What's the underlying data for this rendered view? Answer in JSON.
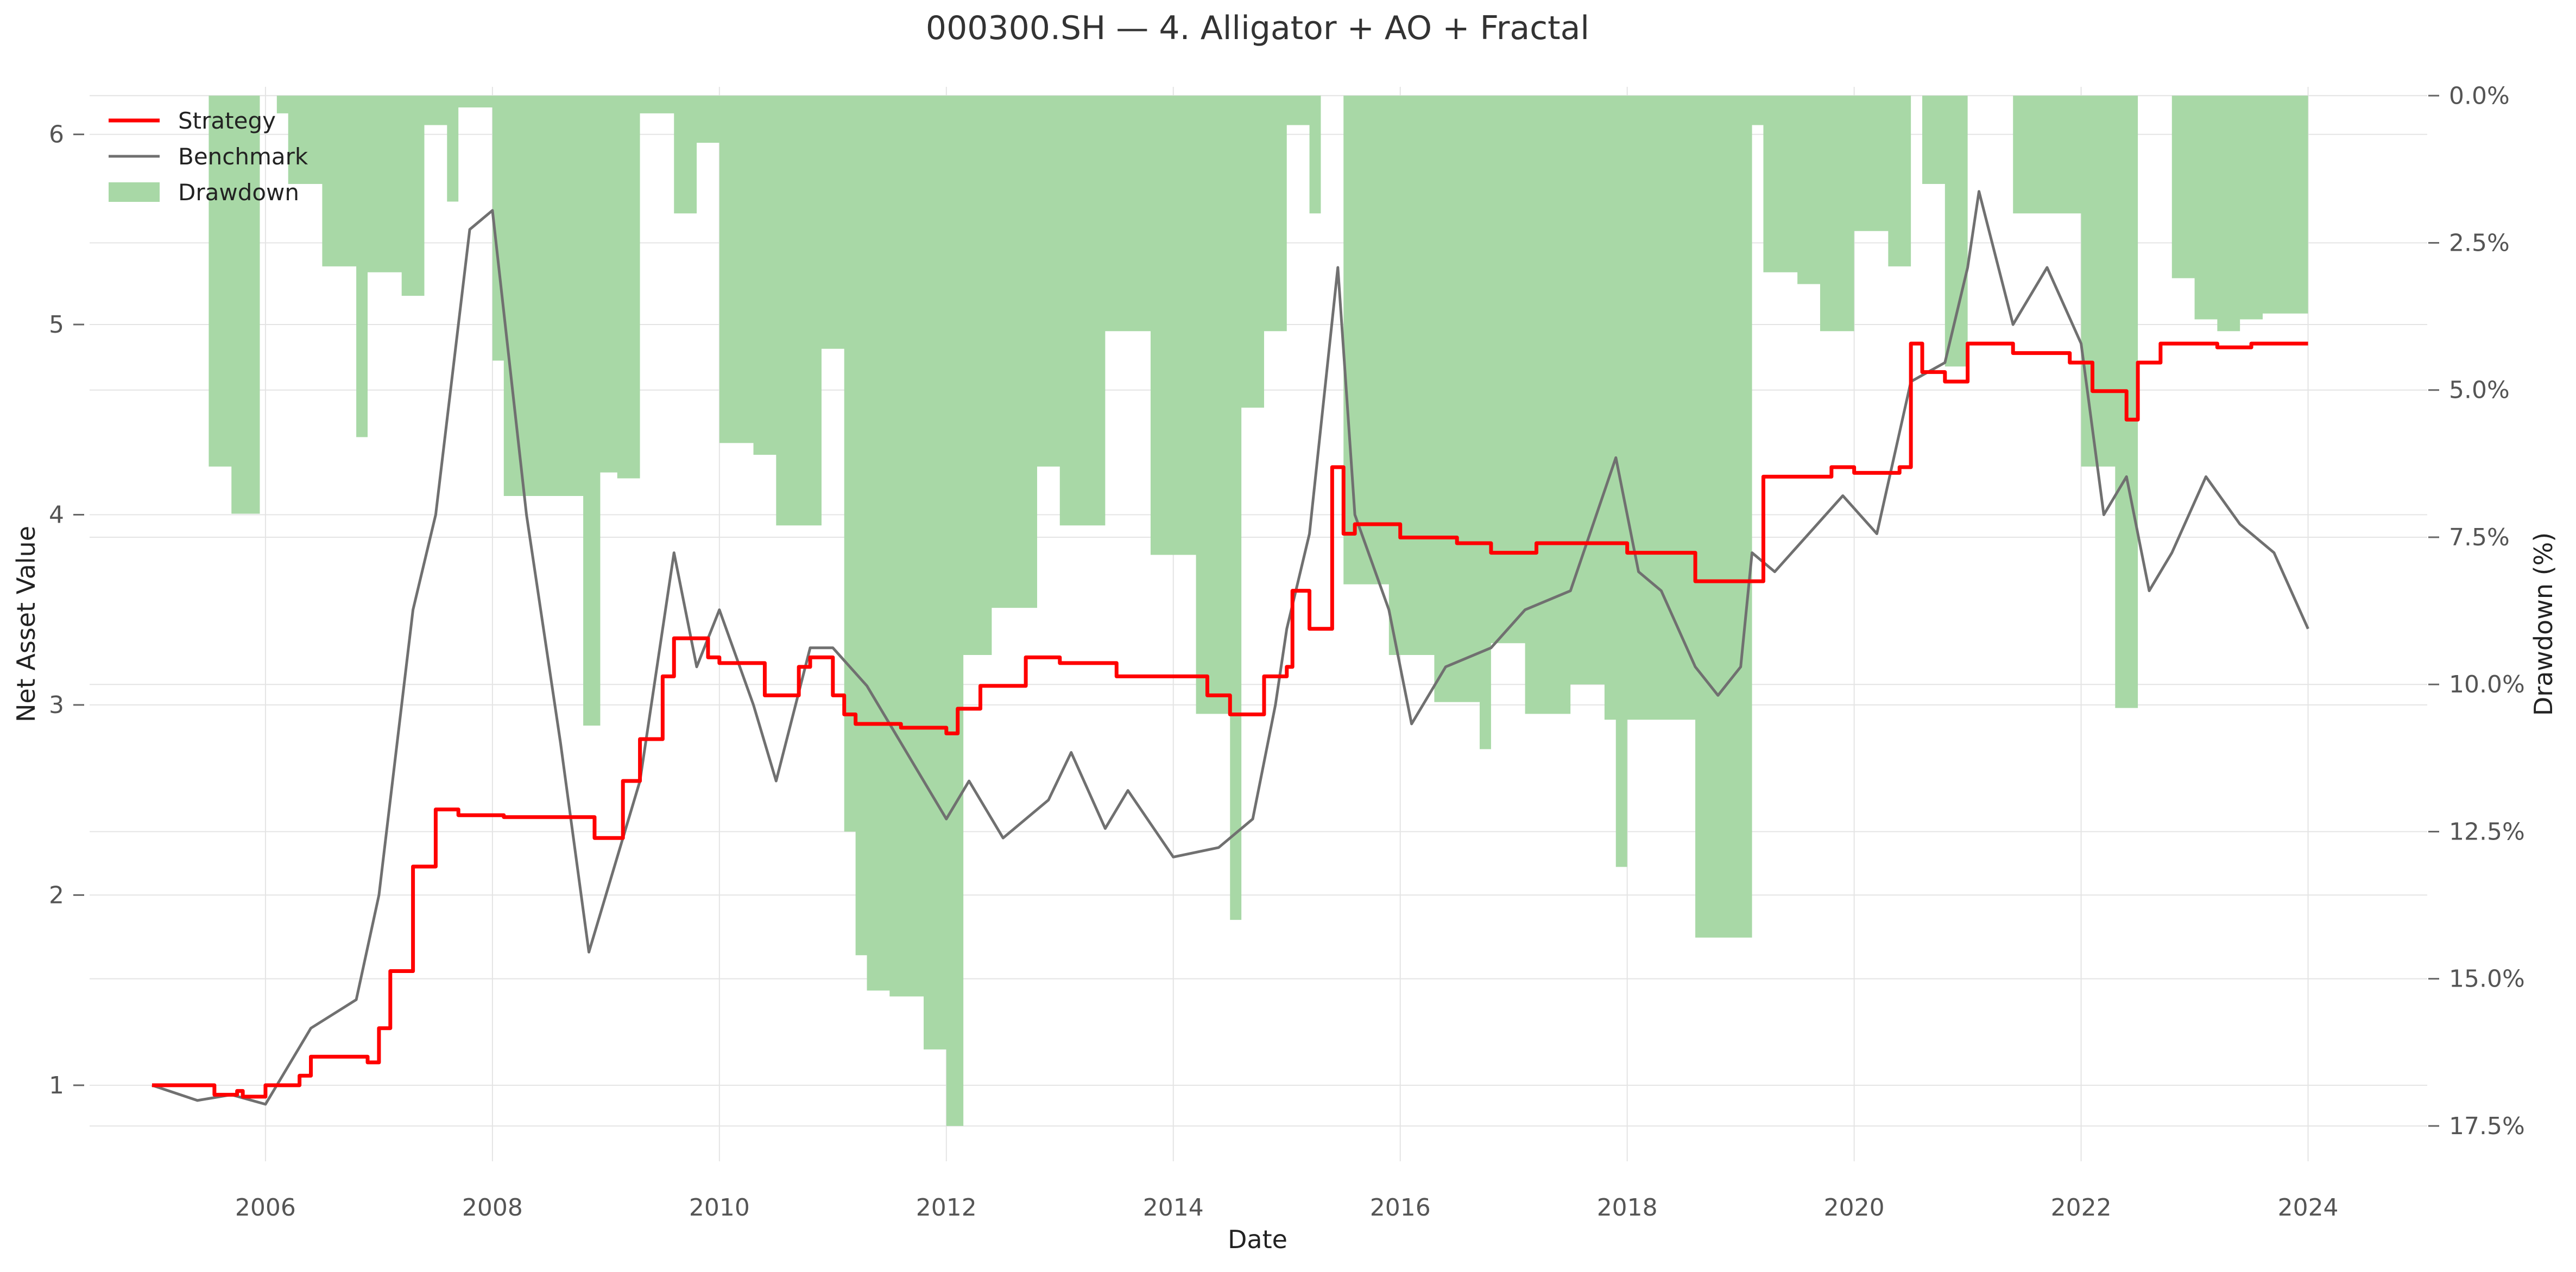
{
  "chart_data": {
    "type": "line",
    "title": "000300.SH — 4. Alligator + AO + Fractal",
    "xlabel": "Date",
    "ylabel": "Net Asset Value",
    "y2label": "Drawdown (%)",
    "xlim": [
      2004.45,
      2025.05
    ],
    "ylim": [
      0.6,
      6.25
    ],
    "y2lim": [
      18.1,
      -0.15
    ],
    "x_ticks": [
      2006,
      2008,
      2010,
      2012,
      2014,
      2016,
      2018,
      2020,
      2022,
      2024
    ],
    "y_ticks": [
      1,
      2,
      3,
      4,
      5,
      6
    ],
    "y2_ticks": [
      0,
      2.5,
      5,
      7.5,
      10,
      12.5,
      15,
      17.5
    ],
    "y2_tick_labels": [
      "0.0%",
      "2.5%",
      "5.0%",
      "7.5%",
      "10.0%",
      "12.5%",
      "15.0%",
      "17.5%"
    ],
    "grid": true,
    "legend_position": "top-left",
    "legend": [
      "Strategy",
      "Benchmark",
      "Drawdown"
    ],
    "colors": {
      "strategy": "#ff0000",
      "benchmark": "#707070",
      "drawdown": "#a8d8a6",
      "grid": "#e4e4e4"
    },
    "series": [
      {
        "name": "Strategy",
        "axis": "left",
        "x": [
          2005.0,
          2005.5,
          2005.55,
          2005.75,
          2005.8,
          2005.95,
          2006.0,
          2006.3,
          2006.4,
          2006.9,
          2007.0,
          2007.1,
          2007.3,
          2007.5,
          2007.7,
          2008.0,
          2008.1,
          2008.3,
          2008.9,
          2009.0,
          2009.15,
          2009.3,
          2009.5,
          2009.6,
          2009.9,
          2010.0,
          2010.4,
          2010.5,
          2010.7,
          2010.8,
          2011.0,
          2011.1,
          2011.2,
          2011.6,
          2012.0,
          2012.1,
          2012.3,
          2012.6,
          2012.7,
          2013.0,
          2013.5,
          2013.6,
          2014.3,
          2014.5,
          2014.8,
          2015.0,
          2015.05,
          2015.2,
          2015.4,
          2015.5,
          2015.6,
          2016.0,
          2016.5,
          2016.8,
          2017.2,
          2017.6,
          2018.0,
          2018.6,
          2019.0,
          2019.2,
          2019.5,
          2019.8,
          2020.0,
          2020.4,
          2020.5,
          2020.6,
          2020.8,
          2021.0,
          2021.4,
          2021.9,
          2022.1,
          2022.4,
          2022.5,
          2022.7,
          2023.0,
          2023.2,
          2023.5,
          2024.0
        ],
        "values": [
          1.0,
          1.0,
          0.95,
          0.97,
          0.94,
          0.94,
          1.0,
          1.05,
          1.15,
          1.12,
          1.3,
          1.6,
          2.15,
          2.45,
          2.42,
          2.42,
          2.41,
          2.41,
          2.3,
          2.3,
          2.6,
          2.82,
          3.15,
          3.35,
          3.25,
          3.22,
          3.05,
          3.05,
          3.2,
          3.25,
          3.05,
          2.95,
          2.9,
          2.88,
          2.85,
          2.98,
          3.1,
          3.1,
          3.25,
          3.22,
          3.15,
          3.15,
          3.05,
          2.95,
          3.15,
          3.2,
          3.6,
          3.4,
          4.25,
          3.9,
          3.95,
          3.88,
          3.85,
          3.8,
          3.85,
          3.85,
          3.8,
          3.65,
          3.65,
          4.2,
          4.2,
          4.25,
          4.22,
          4.25,
          4.9,
          4.75,
          4.7,
          4.9,
          4.85,
          4.8,
          4.65,
          4.5,
          4.8,
          4.9,
          4.9,
          4.88,
          4.9,
          4.9
        ]
      },
      {
        "name": "Benchmark",
        "axis": "left",
        "x": [
          2005.0,
          2005.4,
          2005.7,
          2006.0,
          2006.4,
          2006.8,
          2007.0,
          2007.3,
          2007.5,
          2007.8,
          2008.0,
          2008.3,
          2008.6,
          2008.85,
          2009.0,
          2009.3,
          2009.6,
          2009.8,
          2010.0,
          2010.3,
          2010.5,
          2010.8,
          2011.0,
          2011.3,
          2011.6,
          2012.0,
          2012.2,
          2012.5,
          2012.9,
          2013.1,
          2013.4,
          2013.6,
          2014.0,
          2014.4,
          2014.7,
          2014.9,
          2015.0,
          2015.2,
          2015.45,
          2015.6,
          2015.9,
          2016.1,
          2016.4,
          2016.8,
          2017.1,
          2017.5,
          2017.9,
          2018.1,
          2018.3,
          2018.6,
          2018.8,
          2019.0,
          2019.1,
          2019.3,
          2019.6,
          2019.9,
          2020.2,
          2020.5,
          2020.8,
          2021.0,
          2021.1,
          2021.4,
          2021.7,
          2022.0,
          2022.2,
          2022.4,
          2022.6,
          2022.8,
          2023.1,
          2023.4,
          2023.7,
          2024.0
        ],
        "values": [
          1.0,
          0.92,
          0.95,
          0.9,
          1.3,
          1.45,
          2.0,
          3.5,
          4.0,
          5.5,
          5.6,
          4.0,
          2.8,
          1.7,
          2.0,
          2.6,
          3.8,
          3.2,
          3.5,
          3.0,
          2.6,
          3.3,
          3.3,
          3.1,
          2.8,
          2.4,
          2.6,
          2.3,
          2.5,
          2.75,
          2.35,
          2.55,
          2.2,
          2.25,
          2.4,
          3.0,
          3.4,
          3.9,
          5.3,
          4.0,
          3.5,
          2.9,
          3.2,
          3.3,
          3.5,
          3.6,
          4.3,
          3.7,
          3.6,
          3.2,
          3.05,
          3.2,
          3.8,
          3.7,
          3.9,
          4.1,
          3.9,
          4.7,
          4.8,
          5.3,
          5.7,
          5.0,
          5.3,
          4.9,
          4.0,
          4.2,
          3.6,
          3.8,
          4.2,
          3.95,
          3.8,
          3.4
        ]
      },
      {
        "name": "Drawdown",
        "axis": "right",
        "type": "area",
        "x": [
          2005.45,
          2005.5,
          2005.6,
          2005.7,
          2005.95,
          2006.1,
          2006.2,
          2006.5,
          2006.8,
          2006.9,
          2007.2,
          2007.4,
          2007.6,
          2007.7,
          2008.0,
          2008.1,
          2008.4,
          2008.8,
          2008.95,
          2009.1,
          2009.3,
          2009.6,
          2009.8,
          2010.0,
          2010.3,
          2010.5,
          2010.6,
          2010.9,
          2011.1,
          2011.2,
          2011.3,
          2011.5,
          2011.8,
          2012.0,
          2012.15,
          2012.4,
          2012.8,
          2013.0,
          2013.4,
          2013.8,
          2014.2,
          2014.5,
          2014.6,
          2014.8,
          2015.0,
          2015.2,
          2015.3,
          2015.5,
          2015.6,
          2015.9,
          2016.3,
          2016.7,
          2016.8,
          2017.1,
          2017.5,
          2017.8,
          2017.9,
          2018.0,
          2018.5,
          2018.6,
          2019.1,
          2019.2,
          2019.5,
          2019.7,
          2020.0,
          2020.3,
          2020.5,
          2020.6,
          2020.8,
          2021.0,
          2021.4,
          2021.8,
          2022.0,
          2022.3,
          2022.5,
          2022.8,
          2023.0,
          2023.2,
          2023.4,
          2023.6,
          2024.0
        ],
        "values": [
          0,
          6.3,
          6.3,
          7.1,
          0,
          0.3,
          1.5,
          2.9,
          5.8,
          3.0,
          3.4,
          0.5,
          1.8,
          0.2,
          4.5,
          6.8,
          6.8,
          10.7,
          6.4,
          6.5,
          0.3,
          2.0,
          0.8,
          5.9,
          6.1,
          7.3,
          7.3,
          4.3,
          12.5,
          14.6,
          15.2,
          15.3,
          16.2,
          17.5,
          9.5,
          8.7,
          6.3,
          7.3,
          4.0,
          7.8,
          10.5,
          14.0,
          5.3,
          4.0,
          0.5,
          2.0,
          0,
          8.3,
          8.3,
          9.5,
          10.3,
          11.1,
          9.3,
          10.5,
          10.0,
          10.6,
          13.1,
          10.6,
          10.6,
          14.3,
          0.5,
          3.0,
          3.2,
          4.0,
          2.3,
          2.9,
          0,
          1.5,
          4.6,
          0,
          2.0,
          2.0,
          6.3,
          10.4,
          0,
          3.1,
          3.8,
          4.0,
          3.8,
          3.7,
          3.7
        ]
      }
    ]
  }
}
